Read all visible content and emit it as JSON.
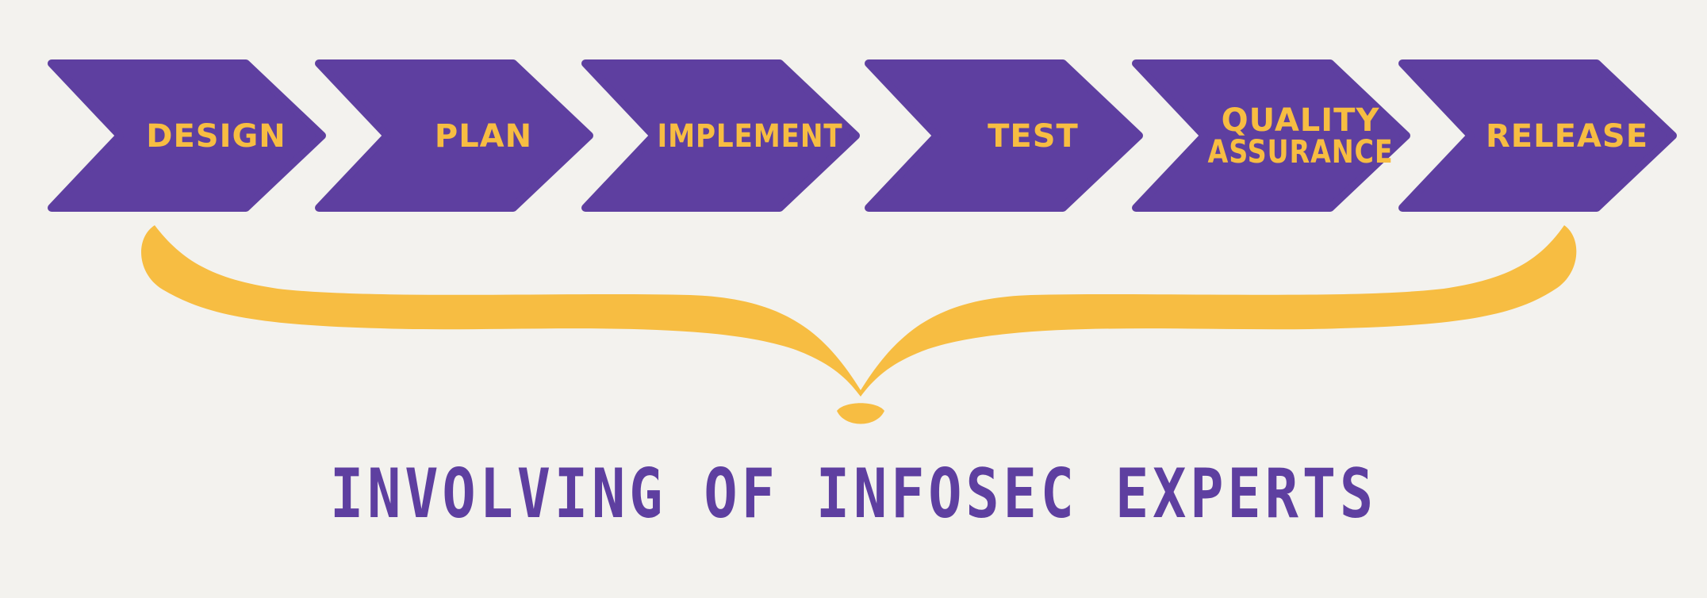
{
  "colors": {
    "background": "#f3f2ee",
    "chevron": "#5e3fa0",
    "accent": "#f7bd42",
    "caption": "#5e3fa0"
  },
  "steps": [
    {
      "label_lines": [
        "DESIGN"
      ]
    },
    {
      "label_lines": [
        "PLAN"
      ]
    },
    {
      "label_lines": [
        "IMPLEMENT"
      ]
    },
    {
      "label_lines": [
        "TEST"
      ]
    },
    {
      "label_lines": [
        "QUALITY",
        "ASSURANCE"
      ]
    },
    {
      "label_lines": [
        "RELEASE"
      ]
    }
  ],
  "caption": "INVOLVING OF INFOSEC EXPERTS"
}
